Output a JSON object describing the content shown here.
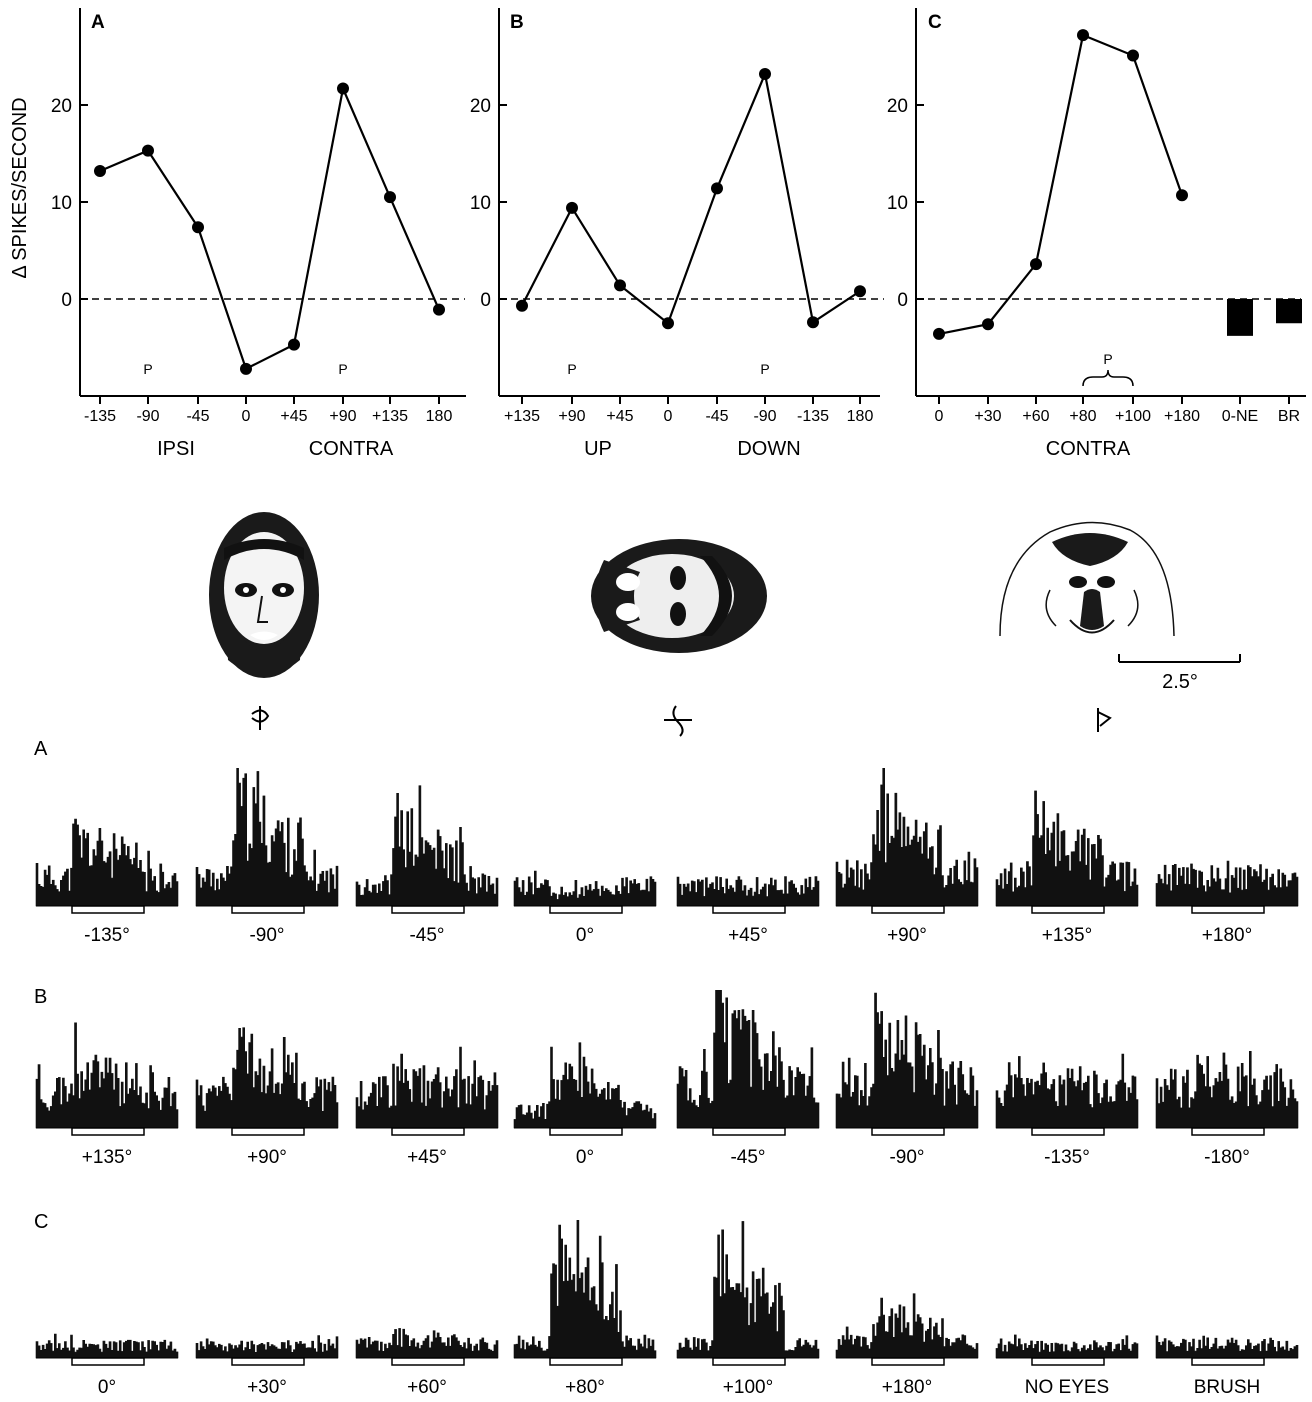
{
  "figure": {
    "ylabel": "Δ SPIKES/SECOND",
    "scale_label": "2.5°",
    "preferred_marker": "P"
  },
  "chart_data": [
    {
      "type": "line",
      "panel": "A",
      "categories": [
        "-135",
        "-90",
        "-45",
        "0",
        "+45",
        "+90",
        "+135",
        "180"
      ],
      "values": [
        13.2,
        15.3,
        7.4,
        -7.2,
        -4.7,
        21.7,
        10.5,
        -1.1
      ],
      "ylim": [
        -10,
        29
      ],
      "yticks": [
        "20",
        "10",
        "0"
      ],
      "ytick_values": [
        20,
        10,
        0
      ],
      "zero_line": "dashed",
      "axis_words": [
        "IPSI",
        "CONTRA"
      ],
      "preferred": [
        "-90",
        "+90"
      ],
      "legend": "none"
    },
    {
      "type": "line",
      "panel": "B",
      "categories": [
        "+135",
        "+90",
        "+45",
        "0",
        "-45",
        "-90",
        "-135",
        "180"
      ],
      "values": [
        -0.7,
        9.4,
        1.4,
        -2.5,
        11.4,
        23.2,
        -2.4,
        0.8
      ],
      "ylim": [
        -10,
        29
      ],
      "yticks": [
        "20",
        "10",
        "0"
      ],
      "ytick_values": [
        20,
        10,
        0
      ],
      "zero_line": "dashed",
      "axis_words": [
        "UP",
        "DOWN"
      ],
      "preferred": [
        "+90",
        "-90"
      ],
      "legend": "none"
    },
    {
      "type": "line",
      "panel": "C",
      "categories": [
        "0",
        "+30",
        "+60",
        "+80",
        "+100",
        "+180",
        "0-NE",
        "BR"
      ],
      "values": [
        -3.6,
        -2.6,
        3.6,
        27.2,
        25.1,
        10.7,
        null,
        null
      ],
      "bar_categories": [
        "0-NE",
        "BR"
      ],
      "bar_values": [
        -3.8,
        -2.5
      ],
      "ylim": [
        -10,
        29
      ],
      "yticks": [
        "20",
        "10",
        "0"
      ],
      "ytick_values": [
        20,
        10,
        0
      ],
      "zero_line": "dashed",
      "axis_words": [
        "CONTRA"
      ],
      "preferred_span": [
        "+80",
        "+100"
      ],
      "legend": "none"
    }
  ],
  "histograms": [
    {
      "row": "A",
      "labels": [
        "-135°",
        "-90°",
        "-45°",
        "0°",
        "+45°",
        "+90°",
        "+135°",
        "+180°"
      ],
      "responses": [
        0.65,
        1.0,
        0.78,
        0.12,
        0.2,
        0.9,
        0.78,
        0.28
      ],
      "baselines": [
        0.28,
        0.28,
        0.22,
        0.2,
        0.2,
        0.32,
        0.3,
        0.28
      ]
    },
    {
      "row": "B",
      "labels": [
        "+135°",
        "+90°",
        "+45°",
        "0°",
        "-45°",
        "-90°",
        "-135°",
        "-180°"
      ],
      "responses": [
        0.55,
        0.72,
        0.45,
        0.55,
        1.0,
        0.92,
        0.45,
        0.5
      ],
      "baselines": [
        0.35,
        0.35,
        0.38,
        0.18,
        0.42,
        0.45,
        0.38,
        0.4
      ]
    },
    {
      "row": "C",
      "labels": [
        "0°",
        "+30°",
        "+60°",
        "+80°",
        "+100°",
        "+180°",
        "NO EYES",
        "BRUSH"
      ],
      "responses": [
        0.12,
        0.12,
        0.22,
        1.0,
        0.95,
        0.45,
        0.12,
        0.14
      ],
      "baselines": [
        0.12,
        0.12,
        0.14,
        0.15,
        0.15,
        0.16,
        0.13,
        0.13
      ]
    }
  ]
}
